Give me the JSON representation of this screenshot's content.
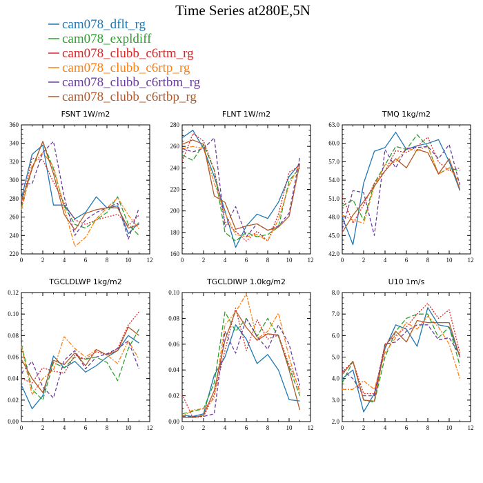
{
  "figure": {
    "title": "Time Series at280E,5N"
  },
  "series_styles": [
    {
      "name": "cam078_dflt_rg",
      "color": "#1f77b4",
      "dash": "solid"
    },
    {
      "name": "cam078_expldiff",
      "color": "#2ca02c",
      "dash": "long-dash"
    },
    {
      "name": "cam078_clubb_c6rtm_rg",
      "color": "#d62728",
      "dash": "dotted"
    },
    {
      "name": "cam078_clubb_c6rtp_rg",
      "color": "#ff7f0e",
      "dash": "dash-dot"
    },
    {
      "name": "cam078_clubb_c6rtbm_rg",
      "color": "#6a3d9a",
      "dash": "dashed"
    },
    {
      "name": "cam078_clubb_c6rtbp_rg",
      "color": "#b15928",
      "dash": "solid"
    }
  ],
  "chart_data": [
    {
      "type": "line",
      "title": "FSNT   1W/m2",
      "xlim": [
        0,
        12
      ],
      "xticks": [
        "0",
        "2",
        "4",
        "6",
        "8",
        "10",
        "12"
      ],
      "ylim": [
        220,
        360
      ],
      "yticks": [
        "220",
        "240",
        "260",
        "280",
        "300",
        "320",
        "340",
        "360"
      ],
      "x": [
        0,
        1,
        2,
        3,
        4,
        5,
        6,
        7,
        8,
        9,
        10,
        11
      ],
      "series": [
        {
          "name": "cam078_dflt_rg",
          "values": [
            280,
            328,
            338,
            273,
            273,
            258,
            265,
            282,
            270,
            272,
            242,
            254
          ]
        },
        {
          "name": "cam078_expldiff",
          "values": [
            270,
            313,
            342,
            312,
            272,
            252,
            248,
            257,
            265,
            282,
            252,
            240
          ]
        },
        {
          "name": "cam078_clubb_c6rtm_rg",
          "values": [
            272,
            324,
            322,
            298,
            275,
            257,
            252,
            257,
            260,
            263,
            251,
            262
          ]
        },
        {
          "name": "cam078_clubb_c6rtp_rg",
          "values": [
            268,
            316,
            330,
            315,
            270,
            228,
            238,
            258,
            270,
            281,
            262,
            247
          ]
        },
        {
          "name": "cam078_clubb_c6rtbm_rg",
          "values": [
            296,
            296,
            330,
            342,
            282,
            240,
            257,
            265,
            270,
            275,
            236,
            270
          ]
        },
        {
          "name": "cam078_clubb_c6rtbp_rg",
          "values": [
            278,
            312,
            342,
            307,
            263,
            246,
            264,
            268,
            270,
            270,
            248,
            252
          ]
        }
      ]
    },
    {
      "type": "line",
      "title": "FLNT   1W/m2",
      "xlim": [
        0,
        12
      ],
      "xticks": [
        "0",
        "2",
        "4",
        "6",
        "8",
        "10",
        "12"
      ],
      "ylim": [
        160,
        280
      ],
      "yticks": [
        "160",
        "180",
        "200",
        "220",
        "240",
        "260",
        "280"
      ],
      "x": [
        0,
        1,
        2,
        3,
        4,
        5,
        6,
        7,
        8,
        9,
        10,
        11
      ],
      "series": [
        {
          "name": "cam078_dflt_rg",
          "values": [
            268,
            275,
            258,
            232,
            200,
            166,
            186,
            197,
            193,
            208,
            232,
            244
          ]
        },
        {
          "name": "cam078_expldiff",
          "values": [
            252,
            247,
            262,
            238,
            180,
            172,
            180,
            176,
            178,
            185,
            228,
            240
          ]
        },
        {
          "name": "cam078_clubb_c6rtm_rg",
          "values": [
            246,
            272,
            265,
            238,
            190,
            181,
            172,
            181,
            172,
            197,
            236,
            242
          ]
        },
        {
          "name": "cam078_clubb_c6rtp_rg",
          "values": [
            258,
            260,
            258,
            226,
            198,
            178,
            176,
            178,
            172,
            192,
            224,
            244
          ]
        },
        {
          "name": "cam078_clubb_c6rtbm_rg",
          "values": [
            258,
            255,
            258,
            268,
            185,
            204,
            176,
            188,
            182,
            186,
            198,
            250
          ]
        },
        {
          "name": "cam078_clubb_c6rtbp_rg",
          "values": [
            262,
            266,
            262,
            214,
            208,
            183,
            186,
            188,
            182,
            185,
            195,
            244
          ]
        }
      ]
    },
    {
      "type": "line",
      "title": "TMQ   1kg/m2",
      "xlim": [
        0,
        12
      ],
      "xticks": [
        "0",
        "2",
        "4",
        "6",
        "8",
        "10",
        "12"
      ],
      "ylim": [
        42.0,
        63.0
      ],
      "yticks": [
        "42.0",
        "45.0",
        "48.0",
        "51.0",
        "54.0",
        "57.0",
        "60.0",
        "63.0"
      ],
      "x": [
        0,
        1,
        2,
        3,
        4,
        5,
        6,
        7,
        8,
        9,
        10,
        11
      ],
      "series": [
        {
          "name": "cam078_dflt_rg",
          "values": [
            48.0,
            43.5,
            53.5,
            58.7,
            59.3,
            61.8,
            59.0,
            59.6,
            60.0,
            60.6,
            57.0,
            52.3
          ]
        },
        {
          "name": "cam078_expldiff",
          "values": [
            49.8,
            50.8,
            47.5,
            53.5,
            56.5,
            59.5,
            59.0,
            61.4,
            59.5,
            55.0,
            56.0,
            55.5
          ]
        },
        {
          "name": "cam078_clubb_c6rtm_rg",
          "values": [
            51.5,
            47.0,
            50.0,
            53.5,
            55.5,
            58.8,
            58.5,
            59.5,
            61.0,
            57.0,
            55.5,
            56.0
          ]
        },
        {
          "name": "cam078_clubb_c6rtp_rg",
          "values": [
            48.3,
            47.5,
            47.0,
            53.0,
            56.5,
            57.0,
            59.2,
            58.8,
            59.5,
            55.0,
            56.0,
            53.7
          ]
        },
        {
          "name": "cam078_clubb_c6rtbm_rg",
          "values": [
            46.0,
            52.3,
            52.0,
            45.0,
            59.0,
            56.0,
            59.2,
            59.3,
            59.5,
            57.5,
            59.8,
            53.2
          ]
        },
        {
          "name": "cam078_clubb_c6rtbp_rg",
          "values": [
            45.5,
            48.3,
            50.5,
            53.0,
            55.5,
            57.5,
            56.0,
            59.0,
            58.5,
            55.0,
            57.5,
            52.5
          ]
        }
      ]
    },
    {
      "type": "line",
      "title": "TGCLDLWP   1kg/m2",
      "xlim": [
        0,
        12
      ],
      "xticks": [
        "0",
        "2",
        "4",
        "6",
        "8",
        "10",
        "12"
      ],
      "ylim": [
        0.0,
        0.12
      ],
      "yticks": [
        "0.00",
        "0.02",
        "0.04",
        "0.06",
        "0.08",
        "0.10",
        "0.12"
      ],
      "x": [
        0,
        1,
        2,
        3,
        4,
        5,
        6,
        7,
        8,
        9,
        10,
        11
      ],
      "series": [
        {
          "name": "cam078_dflt_rg",
          "values": [
            0.034,
            0.012,
            0.024,
            0.061,
            0.05,
            0.056,
            0.046,
            0.052,
            0.06,
            0.066,
            0.08,
            0.073
          ]
        },
        {
          "name": "cam078_expldiff",
          "values": [
            0.072,
            0.03,
            0.02,
            0.055,
            0.05,
            0.06,
            0.058,
            0.06,
            0.055,
            0.038,
            0.068,
            0.086
          ]
        },
        {
          "name": "cam078_clubb_c6rtm_rg",
          "values": [
            0.04,
            0.036,
            0.05,
            0.047,
            0.045,
            0.062,
            0.058,
            0.065,
            0.062,
            0.068,
            0.09,
            0.102
          ]
        },
        {
          "name": "cam078_clubb_c6rtp_rg",
          "values": [
            0.07,
            0.025,
            0.04,
            0.048,
            0.079,
            0.068,
            0.06,
            0.067,
            0.062,
            0.054,
            0.075,
            0.058
          ]
        },
        {
          "name": "cam078_clubb_c6rtbm_rg",
          "values": [
            0.045,
            0.056,
            0.032,
            0.022,
            0.057,
            0.066,
            0.049,
            0.06,
            0.063,
            0.068,
            0.075,
            0.049
          ]
        },
        {
          "name": "cam078_clubb_c6rtbp_rg",
          "values": [
            0.058,
            0.04,
            0.027,
            0.057,
            0.053,
            0.064,
            0.052,
            0.067,
            0.062,
            0.066,
            0.088,
            0.08
          ]
        }
      ]
    },
    {
      "type": "line",
      "title": "TGCLDIWP   1.0kg/m2",
      "xlim": [
        0,
        12
      ],
      "xticks": [
        "0",
        "2",
        "4",
        "6",
        "8",
        "10",
        "12"
      ],
      "ylim": [
        0.0,
        0.1
      ],
      "yticks": [
        "0.00",
        "0.02",
        "0.04",
        "0.06",
        "0.08",
        "0.10"
      ],
      "x": [
        0,
        1,
        2,
        3,
        4,
        5,
        6,
        7,
        8,
        9,
        10,
        11
      ],
      "series": [
        {
          "name": "cam078_dflt_rg",
          "values": [
            0.005,
            0.004,
            0.006,
            0.036,
            0.05,
            0.075,
            0.064,
            0.045,
            0.052,
            0.04,
            0.017,
            0.016
          ]
        },
        {
          "name": "cam078_expldiff",
          "values": [
            0.006,
            0.008,
            0.01,
            0.03,
            0.085,
            0.07,
            0.08,
            0.066,
            0.08,
            0.066,
            0.042,
            0.02
          ]
        },
        {
          "name": "cam078_clubb_c6rtm_rg",
          "values": [
            0.021,
            0.003,
            0.004,
            0.021,
            0.055,
            0.088,
            0.055,
            0.079,
            0.064,
            0.067,
            0.044,
            0.025
          ]
        },
        {
          "name": "cam078_clubb_c6rtp_rg",
          "values": [
            0.004,
            0.009,
            0.01,
            0.018,
            0.075,
            0.085,
            0.099,
            0.064,
            0.07,
            0.084,
            0.05,
            0.022
          ]
        },
        {
          "name": "cam078_clubb_c6rtbm_rg",
          "values": [
            0.004,
            0.004,
            0.004,
            0.006,
            0.07,
            0.053,
            0.08,
            0.066,
            0.056,
            0.075,
            0.06,
            0.028
          ]
        },
        {
          "name": "cam078_clubb_c6rtbp_rg",
          "values": [
            0.003,
            0.003,
            0.005,
            0.024,
            0.063,
            0.086,
            0.073,
            0.063,
            0.068,
            0.067,
            0.04,
            0.009
          ]
        }
      ]
    },
    {
      "type": "line",
      "title": "U10   1m/s",
      "xlim": [
        0,
        12
      ],
      "xticks": [
        "0",
        "2",
        "4",
        "6",
        "8",
        "10",
        "12"
      ],
      "ylim": [
        2.0,
        8.0
      ],
      "yticks": [
        "2.0",
        "3.0",
        "4.0",
        "5.0",
        "6.0",
        "7.0",
        "8.0"
      ],
      "x": [
        0,
        1,
        2,
        3,
        4,
        5,
        6,
        7,
        8,
        9,
        10,
        11
      ],
      "series": [
        {
          "name": "cam078_dflt_rg",
          "values": [
            4.0,
            4.4,
            2.45,
            3.3,
            5.4,
            6.5,
            6.3,
            5.5,
            7.3,
            6.5,
            6.4,
            5.0
          ]
        },
        {
          "name": "cam078_expldiff",
          "values": [
            3.8,
            4.8,
            3.0,
            2.9,
            5.0,
            6.2,
            6.8,
            7.0,
            7.0,
            5.9,
            6.4,
            4.6
          ]
        },
        {
          "name": "cam078_clubb_c6rtm_rg",
          "values": [
            4.3,
            4.8,
            3.3,
            3.3,
            5.6,
            6.0,
            6.4,
            7.0,
            7.5,
            6.8,
            7.2,
            5.2
          ]
        },
        {
          "name": "cam078_clubb_c6rtp_rg",
          "values": [
            3.5,
            3.5,
            3.9,
            3.5,
            5.2,
            5.9,
            6.6,
            6.3,
            6.9,
            6.4,
            5.6,
            4.0
          ]
        },
        {
          "name": "cam078_clubb_c6rtbm_rg",
          "values": [
            4.4,
            4.0,
            3.2,
            3.2,
            5.6,
            5.7,
            6.2,
            6.5,
            6.5,
            5.8,
            5.9,
            5.1
          ]
        },
        {
          "name": "cam078_clubb_c6rtbp_rg",
          "values": [
            4.2,
            4.8,
            3.0,
            2.95,
            5.5,
            6.2,
            5.7,
            6.7,
            6.6,
            6.6,
            6.6,
            5.0
          ]
        }
      ]
    }
  ]
}
